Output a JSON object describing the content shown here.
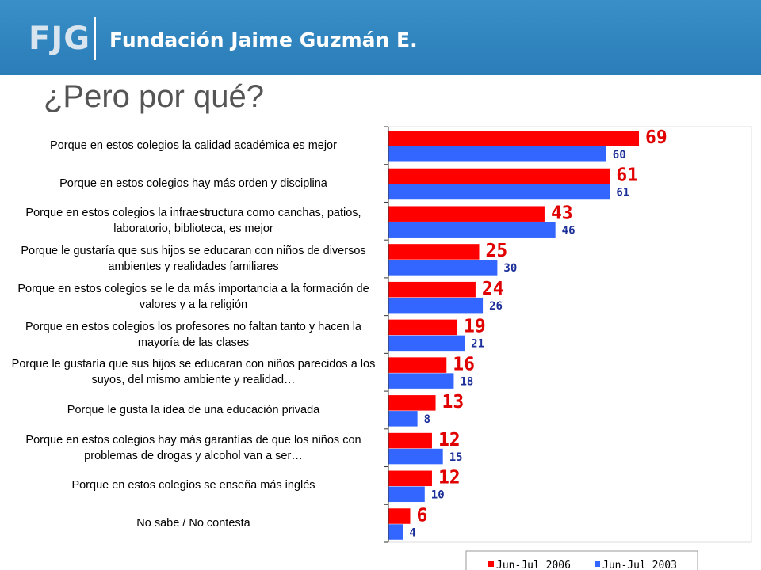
{
  "header": {
    "logo": "FJG",
    "name": "Fundación Jaime Guzmán E."
  },
  "chart_data": {
    "type": "bar",
    "orientation": "horizontal",
    "title": "¿Pero por qué?",
    "categories": [
      "Porque en estos colegios la calidad académica es mejor",
      "Porque en estos colegios hay más orden y disciplina",
      "Porque en estos colegios la infraestructura como canchas, patios, laboratorio, biblioteca, es mejor",
      "Porque le gustaría que sus hijos se educaran con niños de diversos ambientes y realidades familiares",
      "Porque en estos colegios se le da más importancia a la formación de valores y a la religión",
      "Porque en estos colegios los profesores no faltan tanto y hacen la mayoría de las clases",
      "Porque le gustaría que sus hijos se educaran con niños parecidos a los suyos, del mismo ambiente y realidad…",
      "Porque le gusta la idea de una educación privada",
      "Porque en estos colegios hay más garantías de que los niños con problemas de drogas y alcohol van a ser…",
      "Porque en estos colegios se enseña más inglés",
      "No sabe / No contesta"
    ],
    "series": [
      {
        "name": "Jun-Jul 2006",
        "color": "#ff0000",
        "values": [
          69,
          61,
          43,
          25,
          24,
          19,
          16,
          13,
          12,
          12,
          6
        ]
      },
      {
        "name": "Jun-Jul 2003",
        "color": "#3366ff",
        "values": [
          60,
          61,
          46,
          30,
          26,
          21,
          18,
          8,
          15,
          10,
          4
        ]
      }
    ],
    "xlim": [
      0,
      100
    ],
    "legend": "bottom"
  }
}
